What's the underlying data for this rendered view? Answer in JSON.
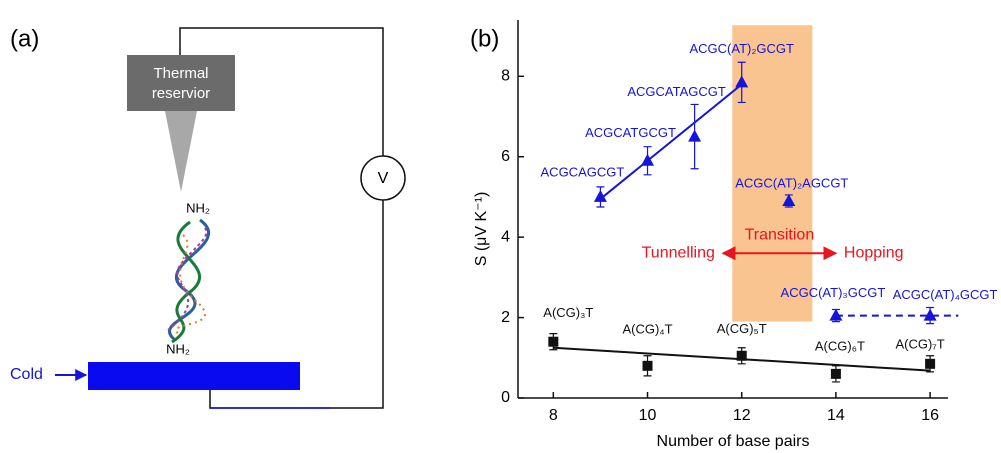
{
  "panel_a": {
    "label": "(a)",
    "reservoir_label": [
      "Thermal",
      "reservior"
    ],
    "top_group": "NH₂",
    "bottom_group": "NH₂",
    "meter": "V",
    "cold": "Cold"
  },
  "chart_data": {
    "type": "scatter",
    "label": "(b)",
    "x_label": "Number of base pairs",
    "y_label": "S (μV K⁻¹)",
    "xlim": [
      7.25,
      16.38
    ],
    "ylim": [
      0,
      9.4
    ],
    "xticks": [
      8,
      10,
      12,
      14,
      16
    ],
    "yticks": [
      0,
      2,
      4,
      6,
      8
    ],
    "series": [
      {
        "color": "#1414dc",
        "marker": "triangle",
        "x": [
          9,
          10,
          11,
          12,
          13,
          14,
          16
        ],
        "values": [
          5.0,
          5.9,
          6.5,
          7.85,
          4.9,
          2.05,
          2.05
        ],
        "errors": [
          0.25,
          0.35,
          0.8,
          0.5,
          0.15,
          0.15,
          0.2
        ],
        "point_labels": [
          "ACGCAGCGT",
          "ACGCATGCGT",
          "ACGCATAGCGT",
          "ACGC(AT)₂GCGT",
          "ACGC(AT)₂AGCGT",
          "ACGC(AT)₃GCGT",
          "ACGC(AT)₄GCGT"
        ]
      },
      {
        "color": "#111111",
        "marker": "square",
        "x": [
          8,
          10,
          12,
          14,
          16
        ],
        "values": [
          1.4,
          0.8,
          1.05,
          0.6,
          0.85
        ],
        "errors": [
          0.2,
          0.25,
          0.2,
          0.2,
          0.2
        ],
        "point_labels": [
          "A(CG)₃T",
          "A(CG)₄T",
          "A(CG)₅T",
          "A(CG)₆T",
          "A(CG)₇T"
        ]
      }
    ],
    "fit_lines": [
      {
        "color": "#1414dc",
        "dashed": false,
        "x": [
          9,
          12
        ],
        "values": [
          4.95,
          7.8
        ]
      },
      {
        "color": "#1414dc",
        "dashed": true,
        "x": [
          14,
          16.6
        ],
        "values": [
          2.05,
          2.05
        ]
      },
      {
        "color": "#111111",
        "dashed": false,
        "x": [
          8,
          16
        ],
        "values": [
          1.25,
          0.68
        ]
      }
    ],
    "shaded_region": {
      "color": "#f9c48f",
      "xlim": [
        11.8,
        13.5
      ],
      "ylim": [
        1.9,
        9.27
      ]
    },
    "regime_arrow": {
      "color": "#e8141e",
      "xlim": [
        11.6,
        14.0
      ],
      "y": 3.6,
      "left_text": "Tunnelling",
      "middle_text": "Transition",
      "right_text": "Hopping"
    }
  }
}
